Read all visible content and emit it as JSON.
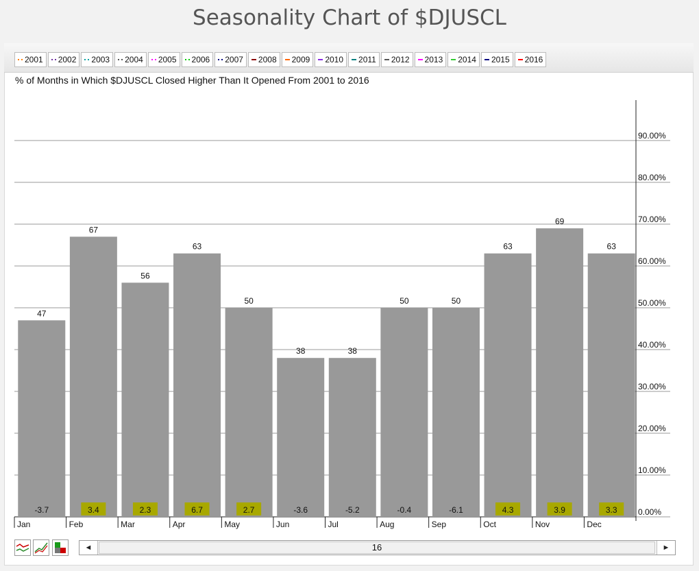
{
  "page": {
    "title": "Seasonality Chart of $DJUSCL"
  },
  "legend": {
    "items": [
      {
        "label": "2001",
        "color": "#ff8000",
        "style": "dotted"
      },
      {
        "label": "2002",
        "color": "#7030a0",
        "style": "dotted"
      },
      {
        "label": "2003",
        "color": "#00a0a0",
        "style": "dotted"
      },
      {
        "label": "2004",
        "color": "#555555",
        "style": "dotted"
      },
      {
        "label": "2005",
        "color": "#ff00ff",
        "style": "dotted"
      },
      {
        "label": "2006",
        "color": "#00cc00",
        "style": "dotted"
      },
      {
        "label": "2007",
        "color": "#000080",
        "style": "dotted"
      },
      {
        "label": "2008",
        "color": "#8b0000",
        "style": "solid"
      },
      {
        "label": "2009",
        "color": "#ff6600",
        "style": "solid"
      },
      {
        "label": "2010",
        "color": "#8a2be2",
        "style": "solid"
      },
      {
        "label": "2011",
        "color": "#008080",
        "style": "solid"
      },
      {
        "label": "2012",
        "color": "#555555",
        "style": "solid"
      },
      {
        "label": "2013",
        "color": "#ff00ff",
        "style": "solid"
      },
      {
        "label": "2014",
        "color": "#33cc33",
        "style": "solid"
      },
      {
        "label": "2015",
        "color": "#000080",
        "style": "solid"
      },
      {
        "label": "2016",
        "color": "#ff0000",
        "style": "solid"
      }
    ]
  },
  "chart_data": {
    "type": "bar",
    "title": "% of Months in Which $DJUSCL Closed Higher Than It Opened From 2001 to 2016",
    "categories": [
      "Jan",
      "Feb",
      "Mar",
      "Apr",
      "May",
      "Jun",
      "Jul",
      "Aug",
      "Sep",
      "Oct",
      "Nov",
      "Dec"
    ],
    "values": [
      47,
      67,
      56,
      63,
      50,
      38,
      38,
      50,
      50,
      63,
      69,
      63
    ],
    "avg_change": [
      "-3.7",
      "3.4",
      "2.3",
      "6.7",
      "2.7",
      "-3.6",
      "-5.2",
      "-0.4",
      "-6.1",
      "4.3",
      "3.9",
      "3.3"
    ],
    "ylim": [
      0,
      100
    ],
    "yticks": [
      0,
      10,
      20,
      30,
      40,
      50,
      60,
      70,
      80,
      90
    ],
    "ytick_labels": [
      "0.00%",
      "10.00%",
      "20.00%",
      "30.00%",
      "40.00%",
      "50.00%",
      "60.00%",
      "70.00%",
      "80.00%",
      "90.00%"
    ],
    "axis_side": "right",
    "grid": true,
    "bar_color": "#999999",
    "positive_badge_color": "#a8a800"
  },
  "scroller": {
    "value": "16",
    "left_arrow": "◄",
    "right_arrow": "►"
  },
  "toolbar": {
    "icons": [
      "line-chart-icon",
      "trend-chart-icon",
      "bar-toggle-icon"
    ]
  }
}
